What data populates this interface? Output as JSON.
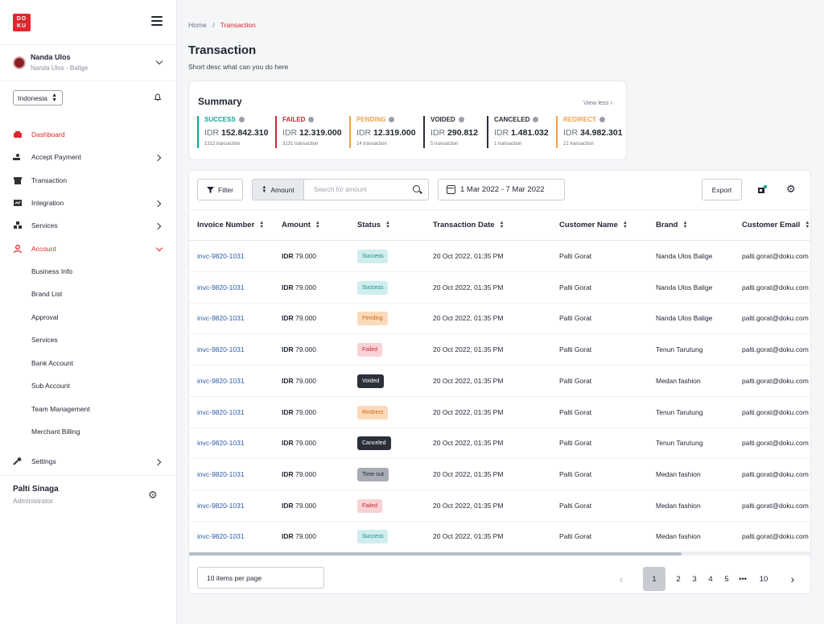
{
  "brand": {
    "logo_text": "DOKU",
    "accent": "#e0262f"
  },
  "merchant": {
    "name": "Nanda Ulos",
    "sub": "Nanda Ulos - Balige"
  },
  "country": {
    "selected": "Indonesia"
  },
  "nav": {
    "dashboard": "Dashboard",
    "accept_payment": "Accept Payment",
    "transaction": "Transaction",
    "integration": "Integration",
    "services": "Services",
    "account": "Account",
    "settings": "Settings"
  },
  "account_sub": [
    "Business Info",
    "Brand List",
    "Approval",
    "Services",
    "Bank Account",
    "Sub Account",
    "Team Management",
    "Merchant Billing"
  ],
  "user": {
    "name": "Palti Sinaga",
    "role": "Administrator"
  },
  "breadcrumb": {
    "home": "Home",
    "sep": "/",
    "current": "Transaction"
  },
  "page": {
    "title": "Transaction",
    "desc": "Short desc what can you do here"
  },
  "summary": {
    "title": "Summary",
    "view_less": "View less",
    "stats": [
      {
        "label": "SUCCESS",
        "currency": "IDR",
        "amount": "152.842.310",
        "count": "1312 transaction",
        "color": "#14a39a"
      },
      {
        "label": "FAILED",
        "currency": "IDR",
        "amount": "12.319.000",
        "count": "3131 transaction",
        "color": "#c92b35"
      },
      {
        "label": "PENDING",
        "currency": "IDR",
        "amount": "12.319.000",
        "count": "14 transaction",
        "color": "#f0a050"
      },
      {
        "label": "VOIDED",
        "currency": "IDR",
        "amount": "290.812",
        "count": "5 transaction",
        "color": "#2b2f3a"
      },
      {
        "label": "CANCELED",
        "currency": "IDR",
        "amount": "1.481.032",
        "count": "1 transaction",
        "color": "#2b2f3a"
      },
      {
        "label": "REDIRECT",
        "currency": "IDR",
        "amount": "34.982.301",
        "count": "21 transaction",
        "color": "#f0a050"
      }
    ]
  },
  "toolbar": {
    "filter": "Filter",
    "amount_select": "Amount",
    "search_placeholder": "Search for amount",
    "date_range": "1 Mar 2022 - 7 Mar 2022",
    "export": "Export"
  },
  "table": {
    "columns": [
      "Invoice Number",
      "Amount",
      "Status",
      "Transaction Date",
      "Customer Name",
      "Brand",
      "Customer Email"
    ],
    "rows": [
      {
        "invoice": "invc-9820-1031",
        "cur": "IDR",
        "amount": "79.000",
        "status": "Success",
        "date": "20 Oct 2022, 01:35 PM",
        "customer": "Palti Gorat",
        "brand": "Nanda Ulos Balige",
        "email": "palti.gorat@doku.com"
      },
      {
        "invoice": "invc-9820-1031",
        "cur": "IDR",
        "amount": "79.000",
        "status": "Success",
        "date": "20 Oct 2022, 01:35 PM",
        "customer": "Palti Gorat",
        "brand": "Nanda Ulos Balige",
        "email": "palti.gorat@doku.com"
      },
      {
        "invoice": "invc-9820-1031",
        "cur": "IDR",
        "amount": "79.000",
        "status": "Pending",
        "date": "20 Oct 2022, 01:35 PM",
        "customer": "Palti Gorat",
        "brand": "Nanda Ulos Balige",
        "email": "palti.gorat@doku.com"
      },
      {
        "invoice": "invc-9820-1031",
        "cur": "IDR",
        "amount": "79.000",
        "status": "Failed",
        "date": "20 Oct 2022, 01:35 PM",
        "customer": "Palti Gorat",
        "brand": "Tenun Tarutung",
        "email": "palti.gorat@doku.com"
      },
      {
        "invoice": "invc-9820-1031",
        "cur": "IDR",
        "amount": "79.000",
        "status": "Voided",
        "date": "20 Oct 2022, 01:35 PM",
        "customer": "Palti Gorat",
        "brand": "Medan fashion",
        "email": "palti.gorat@doku.com"
      },
      {
        "invoice": "invc-9820-1031",
        "cur": "IDR",
        "amount": "79.000",
        "status": "Redirect",
        "date": "20 Oct 2022, 01:35 PM",
        "customer": "Palti Gorat",
        "brand": "Tenun Tarutung",
        "email": "palti.gorat@doku.com"
      },
      {
        "invoice": "invc-9820-1031",
        "cur": "IDR",
        "amount": "79.000",
        "status": "Canceled",
        "date": "20 Oct 2022, 01:35 PM",
        "customer": "Palti Gorat",
        "brand": "Tenun Tarutung",
        "email": "palti.gorat@doku.com"
      },
      {
        "invoice": "invc-9820-1031",
        "cur": "IDR",
        "amount": "79.000",
        "status": "Time out",
        "date": "20 Oct 2022, 01:35 PM",
        "customer": "Palti Gorat",
        "brand": "Medan fashion",
        "email": "palti.gorat@doku.com"
      },
      {
        "invoice": "invc-9820-1031",
        "cur": "IDR",
        "amount": "79.000",
        "status": "Failed",
        "date": "20 Oct 2022, 01:35 PM",
        "customer": "Palti Gorat",
        "brand": "Medan fashion",
        "email": "palti.gorat@doku.com"
      },
      {
        "invoice": "invc-9820-1031",
        "cur": "IDR",
        "amount": "79.000",
        "status": "Success",
        "date": "20 Oct 2022, 01:35 PM",
        "customer": "Palti Gorat",
        "brand": "Medan fashion",
        "email": "palti.gorat@doku.com"
      }
    ]
  },
  "status_colors": {
    "Success": {
      "bg": "#cfeeed",
      "fg": "#138a84"
    },
    "Pending": {
      "bg": "#fcd9b8",
      "fg": "#c96a1b"
    },
    "Failed": {
      "bg": "#f8d2d4",
      "fg": "#c92b35"
    },
    "Voided": {
      "bg": "#2b2f3a",
      "fg": "#ffffff"
    },
    "Redirect": {
      "bg": "#fcd9b8",
      "fg": "#c96a1b"
    },
    "Canceled": {
      "bg": "#2b2f3a",
      "fg": "#ffffff"
    },
    "Time out": {
      "bg": "#a7acb5",
      "fg": "#1f2430"
    }
  },
  "pagination": {
    "per_page": "10 items per page",
    "pages": [
      "1",
      "2",
      "3",
      "4",
      "5",
      "•••",
      "10"
    ],
    "current": "1"
  }
}
